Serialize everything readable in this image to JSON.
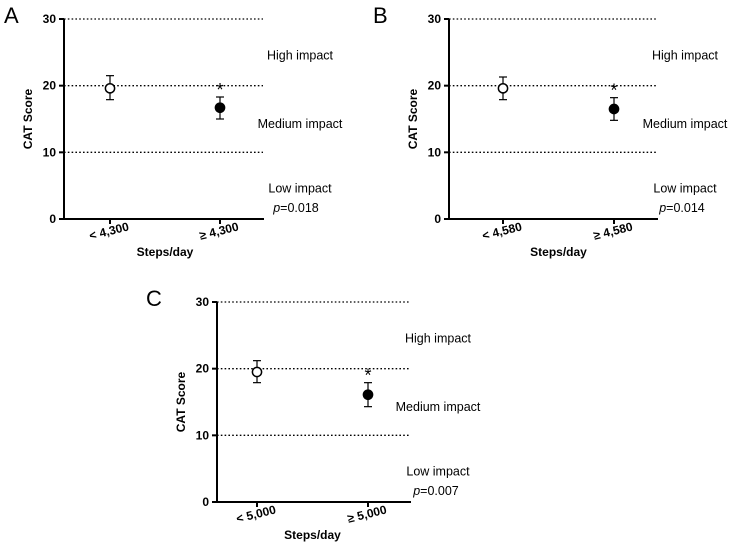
{
  "chart_data": [
    {
      "type": "scatter",
      "panel_label": "A",
      "ylabel": "CAT Score",
      "xlabel": "Steps/day",
      "ylim": [
        0,
        30
      ],
      "yticks": [
        "0",
        "10",
        "20",
        "30"
      ],
      "reference_lines": [
        10,
        20,
        30
      ],
      "categories": [
        "< 4,300",
        "≥ 4,300"
      ],
      "points": [
        {
          "category": "< 4,300",
          "mean": 19.6,
          "err_low": 17.9,
          "err_high": 21.5,
          "marker": "open"
        },
        {
          "category": "≥ 4,300",
          "mean": 16.7,
          "err_low": 15.0,
          "err_high": 18.3,
          "marker": "filled",
          "annotation": "*"
        }
      ],
      "impact_labels": [
        "High impact",
        "Medium impact",
        "Low impact"
      ],
      "p_symbol": "p",
      "p_value": "=0.018"
    },
    {
      "type": "scatter",
      "panel_label": "B",
      "ylabel": "CAT Score",
      "xlabel": "Steps/day",
      "ylim": [
        0,
        30
      ],
      "yticks": [
        "0",
        "10",
        "20",
        "30"
      ],
      "reference_lines": [
        10,
        20,
        30
      ],
      "categories": [
        "< 4,580",
        "≥ 4,580"
      ],
      "points": [
        {
          "category": "< 4,580",
          "mean": 19.6,
          "err_low": 17.9,
          "err_high": 21.3,
          "marker": "open"
        },
        {
          "category": "≥ 4,580",
          "mean": 16.5,
          "err_low": 14.8,
          "err_high": 18.2,
          "marker": "filled",
          "annotation": "*"
        }
      ],
      "impact_labels": [
        "High impact",
        "Medium impact",
        "Low impact"
      ],
      "p_symbol": "p",
      "p_value": "=0.014"
    },
    {
      "type": "scatter",
      "panel_label": "C",
      "ylabel": "CAT Score",
      "xlabel": "Steps/day",
      "ylim": [
        0,
        30
      ],
      "yticks": [
        "0",
        "10",
        "20",
        "30"
      ],
      "reference_lines": [
        10,
        20,
        30
      ],
      "categories": [
        "< 5,000",
        "≥ 5,000"
      ],
      "points": [
        {
          "category": "< 5,000",
          "mean": 19.5,
          "err_low": 17.9,
          "err_high": 21.2,
          "marker": "open"
        },
        {
          "category": "≥ 5,000",
          "mean": 16.1,
          "err_low": 14.3,
          "err_high": 17.9,
          "marker": "filled",
          "annotation": "*"
        }
      ],
      "impact_labels": [
        "High impact",
        "Medium impact",
        "Low impact"
      ],
      "p_symbol": "p",
      "p_value": "=0.007"
    }
  ]
}
